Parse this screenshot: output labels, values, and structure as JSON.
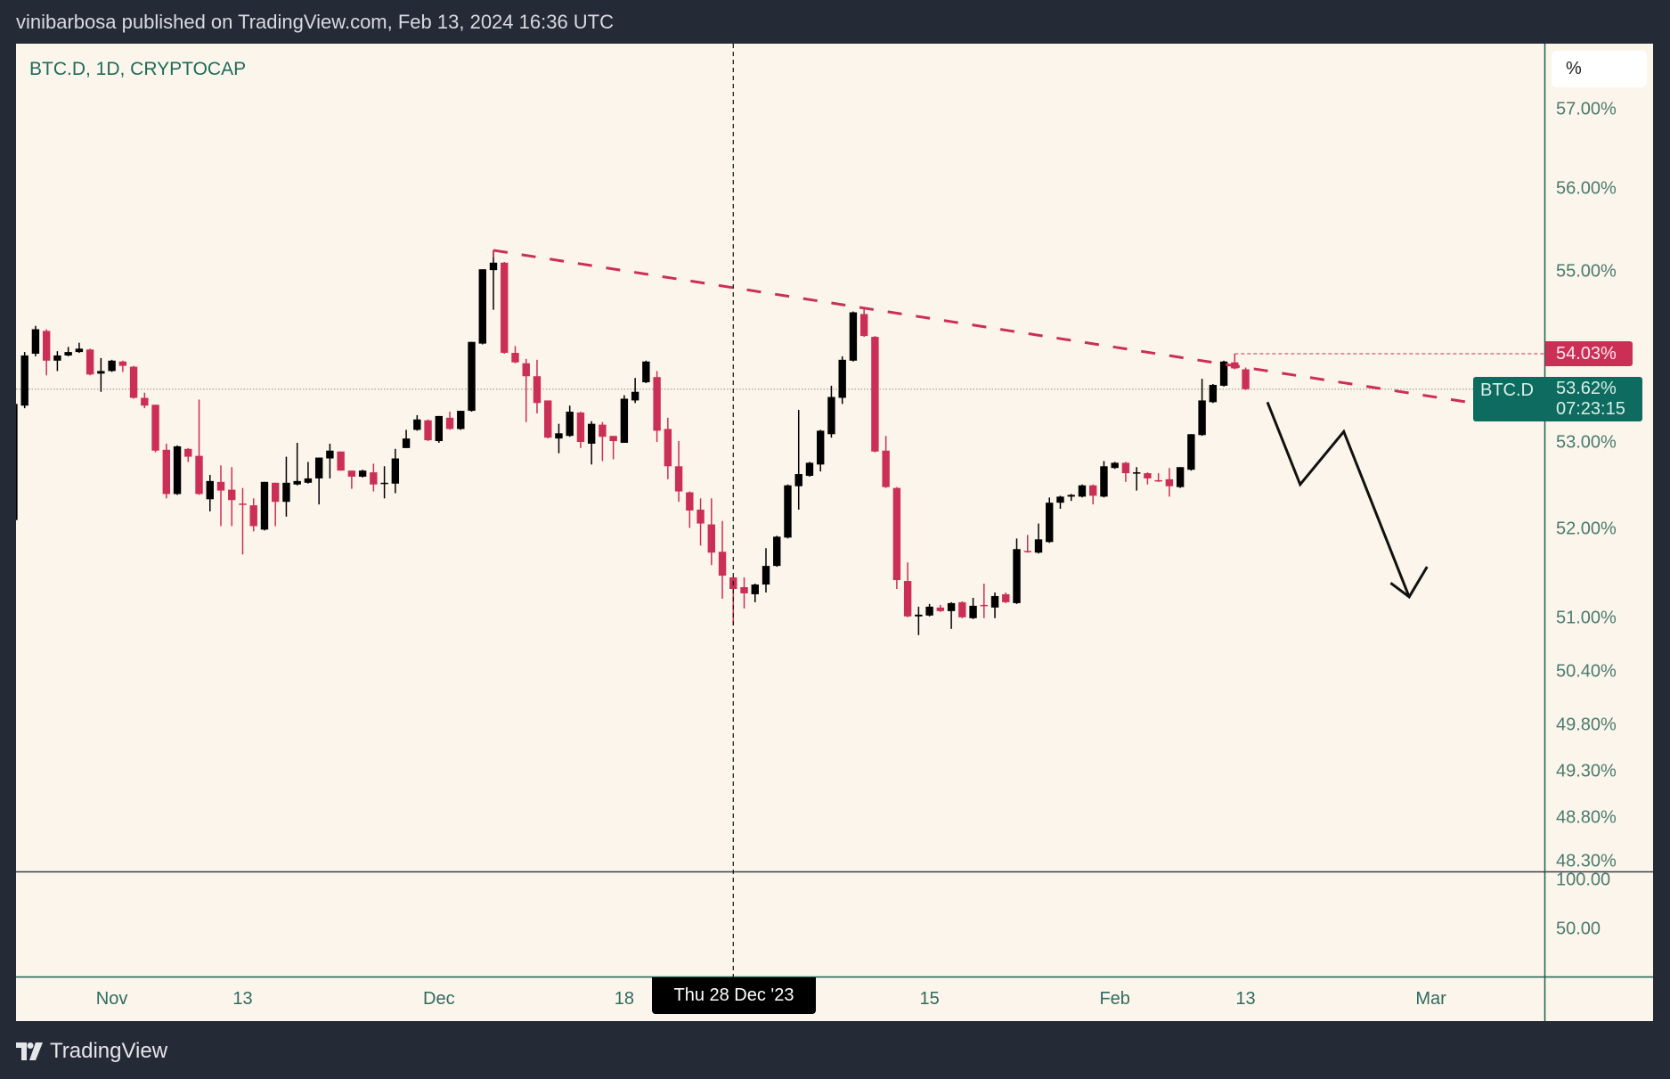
{
  "header": {
    "title": "vinibarbosa published on TradingView.com, Feb 13, 2024 16:36 UTC"
  },
  "legend": {
    "symbol_line": "BTC.D, 1D, CRYPTOCAP"
  },
  "price_axis": {
    "unit_button": "%",
    "high_marker": "54.03%",
    "last_symbol": "BTC.D",
    "last_price": "53.62%",
    "countdown": "07:23:15"
  },
  "lower_pane": {
    "ticks": [
      "100.00",
      "50.00"
    ]
  },
  "crosshair": {
    "label": "Thu 28 Dec '23",
    "date": "2023-12-28"
  },
  "footer": {
    "logo": "TradingView"
  },
  "colors": {
    "up": "#000000",
    "down": "#cc2f55",
    "trendline": "#cc2f55",
    "accent": "#0e6b5f",
    "background": "#fcf5eb"
  },
  "chart_data": {
    "type": "candlestick",
    "title": "BTC.D, 1D, CRYPTOCAP",
    "y_scale": "percent",
    "y_ticks": [
      "57.00%",
      "56.00%",
      "55.00%",
      "53.00%",
      "52.00%",
      "51.00%",
      "50.40%",
      "49.80%",
      "49.30%",
      "48.80%",
      "48.30%"
    ],
    "x_ticks": [
      {
        "label": "Nov",
        "date": "2023-11-01"
      },
      {
        "label": "13",
        "date": "2023-11-13"
      },
      {
        "label": "Dec",
        "date": "2023-12-01"
      },
      {
        "label": "18",
        "date": "2023-12-18"
      },
      {
        "label": "15",
        "date": "2024-01-15"
      },
      {
        "label": "Feb",
        "date": "2024-02-01"
      },
      {
        "label": "13",
        "date": "2024-02-13"
      },
      {
        "label": "Mar",
        "date": "2024-03-01"
      }
    ],
    "last_close": 53.62,
    "high_marker_value": 54.03,
    "candles": {
      "columns": [
        "date",
        "open",
        "high",
        "low",
        "close"
      ],
      "rows": [
        [
          "2023-10-23",
          52.11,
          53.45,
          52.11,
          53.45
        ],
        [
          "2023-10-24",
          53.43,
          54.05,
          53.4,
          54.01
        ],
        [
          "2023-10-25",
          54.03,
          54.36,
          54.0,
          54.32
        ],
        [
          "2023-10-26",
          54.3,
          54.32,
          53.78,
          53.95
        ],
        [
          "2023-10-27",
          53.95,
          54.06,
          53.83,
          54.01
        ],
        [
          "2023-10-28",
          54.01,
          54.11,
          54.0,
          54.05
        ],
        [
          "2023-10-29",
          54.05,
          54.16,
          54.04,
          54.09
        ],
        [
          "2023-10-30",
          54.08,
          54.09,
          53.78,
          53.79
        ],
        [
          "2023-10-31",
          53.8,
          53.98,
          53.59,
          53.83
        ],
        [
          "2023-11-01",
          53.83,
          53.96,
          53.82,
          53.95
        ],
        [
          "2023-11-02",
          53.94,
          53.95,
          53.82,
          53.89
        ],
        [
          "2023-11-03",
          53.88,
          53.89,
          53.51,
          53.52
        ],
        [
          "2023-11-04",
          53.52,
          53.58,
          53.4,
          53.43
        ],
        [
          "2023-11-05",
          53.44,
          53.44,
          52.89,
          52.91
        ],
        [
          "2023-11-06",
          52.92,
          52.99,
          52.36,
          52.41
        ],
        [
          "2023-11-07",
          52.41,
          52.97,
          52.4,
          52.96
        ],
        [
          "2023-11-08",
          52.93,
          52.94,
          52.78,
          52.84
        ],
        [
          "2023-11-09",
          52.85,
          53.5,
          52.4,
          52.41
        ],
        [
          "2023-11-10",
          52.35,
          52.63,
          52.21,
          52.56
        ],
        [
          "2023-11-11",
          52.55,
          52.74,
          52.04,
          52.45
        ],
        [
          "2023-11-12",
          52.46,
          52.72,
          52.04,
          52.34
        ],
        [
          "2023-11-13",
          52.3,
          52.48,
          51.72,
          52.29
        ],
        [
          "2023-11-14",
          52.28,
          52.36,
          51.98,
          52.04
        ],
        [
          "2023-11-15",
          52.0,
          52.55,
          51.99,
          52.55
        ],
        [
          "2023-11-16",
          52.54,
          52.54,
          52.04,
          52.32
        ],
        [
          "2023-11-17",
          52.32,
          52.84,
          52.15,
          52.54
        ],
        [
          "2023-11-18",
          52.52,
          53.0,
          52.51,
          52.56
        ],
        [
          "2023-11-19",
          52.54,
          52.78,
          52.53,
          52.59
        ],
        [
          "2023-11-20",
          52.59,
          52.83,
          52.29,
          52.83
        ],
        [
          "2023-11-21",
          52.82,
          52.99,
          52.59,
          52.91
        ],
        [
          "2023-11-22",
          52.9,
          52.9,
          52.68,
          52.68
        ],
        [
          "2023-11-23",
          52.68,
          52.68,
          52.47,
          52.61
        ],
        [
          "2023-11-24",
          52.61,
          52.69,
          52.6,
          52.68
        ],
        [
          "2023-11-25",
          52.66,
          52.76,
          52.44,
          52.52
        ],
        [
          "2023-11-26",
          52.53,
          52.73,
          52.36,
          52.54
        ],
        [
          "2023-11-27",
          52.53,
          52.93,
          52.42,
          52.82
        ],
        [
          "2023-11-28",
          52.94,
          53.15,
          52.94,
          53.05
        ],
        [
          "2023-11-29",
          53.15,
          53.32,
          53.14,
          53.27
        ],
        [
          "2023-11-30",
          53.26,
          53.27,
          53.02,
          53.03
        ],
        [
          "2023-12-01",
          53.02,
          53.31,
          53.0,
          53.31
        ],
        [
          "2023-12-02",
          53.29,
          53.36,
          53.15,
          53.16
        ],
        [
          "2023-12-03",
          53.16,
          53.37,
          53.15,
          53.37
        ],
        [
          "2023-12-04",
          53.37,
          54.17,
          53.36,
          54.17
        ],
        [
          "2023-12-05",
          54.15,
          55.03,
          54.14,
          55.03
        ],
        [
          "2023-12-06",
          55.02,
          55.26,
          54.55,
          55.11
        ],
        [
          "2023-12-07",
          55.11,
          55.12,
          54.03,
          54.04
        ],
        [
          "2023-12-08",
          54.04,
          54.12,
          53.92,
          53.93
        ],
        [
          "2023-12-09",
          53.92,
          53.97,
          53.24,
          53.77
        ],
        [
          "2023-12-10",
          53.77,
          53.96,
          53.34,
          53.46
        ],
        [
          "2023-12-11",
          53.49,
          53.49,
          53.05,
          53.06
        ],
        [
          "2023-12-12",
          53.05,
          53.22,
          52.88,
          53.11
        ],
        [
          "2023-12-13",
          53.08,
          53.43,
          53.07,
          53.36
        ],
        [
          "2023-12-14",
          53.35,
          53.36,
          52.94,
          53.01
        ],
        [
          "2023-12-15",
          52.99,
          53.25,
          52.75,
          53.22
        ],
        [
          "2023-12-16",
          53.21,
          53.24,
          52.79,
          53.07
        ],
        [
          "2023-12-17",
          53.08,
          53.08,
          52.81,
          53.02
        ],
        [
          "2023-12-18",
          53.0,
          53.55,
          53.0,
          53.51
        ],
        [
          "2023-12-19",
          53.49,
          53.75,
          53.46,
          53.59
        ],
        [
          "2023-12-20",
          53.7,
          53.95,
          53.69,
          53.94
        ],
        [
          "2023-12-21",
          53.76,
          53.83,
          53.01,
          53.14
        ],
        [
          "2023-12-22",
          53.16,
          53.29,
          52.58,
          52.73
        ],
        [
          "2023-12-23",
          52.73,
          53.02,
          52.32,
          52.44
        ],
        [
          "2023-12-24",
          52.43,
          52.44,
          52.02,
          52.22
        ],
        [
          "2023-12-25",
          52.23,
          52.36,
          51.82,
          52.07
        ],
        [
          "2023-12-26",
          52.06,
          52.36,
          51.6,
          51.74
        ],
        [
          "2023-12-27",
          51.75,
          52.1,
          51.22,
          51.48
        ],
        [
          "2023-12-28",
          51.46,
          51.47,
          50.92,
          51.33
        ],
        [
          "2023-12-29",
          51.35,
          51.46,
          51.11,
          51.28
        ],
        [
          "2023-12-30",
          51.27,
          51.39,
          51.18,
          51.38
        ],
        [
          "2023-12-31",
          51.38,
          51.79,
          51.29,
          51.59
        ],
        [
          "2024-01-01",
          51.59,
          51.93,
          51.58,
          51.92
        ],
        [
          "2024-01-02",
          51.91,
          52.52,
          51.9,
          52.51
        ],
        [
          "2024-01-03",
          52.5,
          53.38,
          52.23,
          52.64
        ],
        [
          "2024-01-04",
          52.62,
          52.78,
          52.61,
          52.77
        ],
        [
          "2024-01-05",
          52.75,
          53.15,
          52.67,
          53.14
        ],
        [
          "2024-01-06",
          53.1,
          53.66,
          53.06,
          53.53
        ],
        [
          "2024-01-07",
          53.52,
          54.0,
          53.45,
          53.96
        ],
        [
          "2024-01-08",
          53.95,
          54.53,
          53.94,
          54.52
        ],
        [
          "2024-01-09",
          54.5,
          54.58,
          54.23,
          54.24
        ],
        [
          "2024-01-10",
          54.23,
          54.24,
          52.89,
          52.9
        ],
        [
          "2024-01-11",
          52.91,
          53.08,
          52.48,
          52.49
        ],
        [
          "2024-01-12",
          52.48,
          52.49,
          51.33,
          51.43
        ],
        [
          "2024-01-13",
          51.42,
          51.63,
          51.01,
          51.02
        ],
        [
          "2024-01-14",
          51.02,
          51.13,
          50.81,
          51.04
        ],
        [
          "2024-01-15",
          51.03,
          51.16,
          51.02,
          51.13
        ],
        [
          "2024-01-16",
          51.12,
          51.15,
          51.07,
          51.08
        ],
        [
          "2024-01-17",
          51.08,
          51.18,
          50.88,
          51.17
        ],
        [
          "2024-01-18",
          51.18,
          51.19,
          51.0,
          51.01
        ],
        [
          "2024-01-19",
          51.0,
          51.23,
          50.99,
          51.14
        ],
        [
          "2024-01-20",
          51.15,
          51.39,
          51.0,
          51.14
        ],
        [
          "2024-01-21",
          51.12,
          51.29,
          51.0,
          51.25
        ],
        [
          "2024-01-22",
          51.27,
          51.29,
          51.17,
          51.18
        ],
        [
          "2024-01-23",
          51.17,
          51.9,
          51.16,
          51.78
        ],
        [
          "2024-01-24",
          51.76,
          51.94,
          51.74,
          51.75
        ],
        [
          "2024-01-25",
          51.74,
          52.07,
          51.73,
          51.89
        ],
        [
          "2024-01-26",
          51.86,
          52.37,
          51.85,
          52.31
        ],
        [
          "2024-01-27",
          52.31,
          52.39,
          52.24,
          52.38
        ],
        [
          "2024-01-28",
          52.38,
          52.41,
          52.33,
          52.4
        ],
        [
          "2024-01-29",
          52.38,
          52.52,
          52.37,
          52.51
        ],
        [
          "2024-01-30",
          52.51,
          52.52,
          52.29,
          52.39
        ],
        [
          "2024-01-31",
          52.38,
          52.79,
          52.37,
          52.73
        ],
        [
          "2024-02-01",
          52.71,
          52.78,
          52.7,
          52.77
        ],
        [
          "2024-02-02",
          52.77,
          52.78,
          52.55,
          52.65
        ],
        [
          "2024-02-03",
          52.65,
          52.72,
          52.45,
          52.66
        ],
        [
          "2024-02-04",
          52.65,
          52.66,
          52.52,
          52.59
        ],
        [
          "2024-02-05",
          52.57,
          52.65,
          52.55,
          52.56
        ],
        [
          "2024-02-06",
          52.58,
          52.71,
          52.38,
          52.5
        ],
        [
          "2024-02-07",
          52.49,
          52.72,
          52.48,
          52.72
        ],
        [
          "2024-02-08",
          52.69,
          53.1,
          52.68,
          53.1
        ],
        [
          "2024-02-09",
          53.09,
          53.74,
          53.08,
          53.49
        ],
        [
          "2024-02-10",
          53.47,
          53.68,
          53.46,
          53.67
        ],
        [
          "2024-02-11",
          53.66,
          53.95,
          53.65,
          53.94
        ],
        [
          "2024-02-12",
          53.93,
          54.03,
          53.85,
          53.86
        ],
        [
          "2024-02-13",
          53.85,
          53.87,
          53.61,
          53.62
        ]
      ]
    },
    "annotations": {
      "trendline": [
        {
          "date": "2023-12-06",
          "price": 55.26
        },
        {
          "date": "2024-03-11",
          "price": 53.34
        }
      ],
      "projection_arrow": [
        {
          "date": "2024-02-15",
          "price": 53.47
        },
        {
          "date": "2024-02-18",
          "price": 52.52
        },
        {
          "date": "2024-02-22",
          "price": 53.13
        },
        {
          "date": "2024-02-28",
          "price": 51.24
        }
      ]
    }
  }
}
